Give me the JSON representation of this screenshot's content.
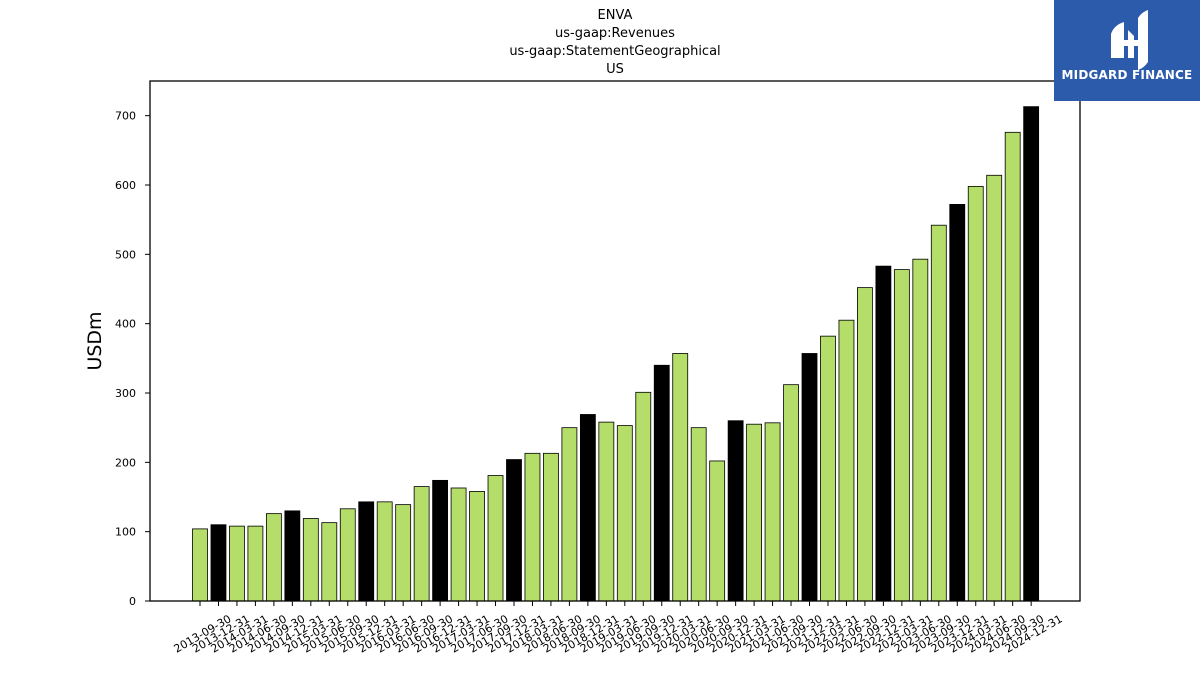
{
  "title_lines": [
    "ENVA",
    "us-gaap:Revenues",
    "us-gaap:StatementGeographical",
    "US"
  ],
  "logo": {
    "text": "MIDGARD FINANCE",
    "background": "#2c5bab"
  },
  "colors": {
    "bar_regular": "#b5dd6a",
    "bar_q4": "#000000",
    "edge": "#000000"
  },
  "chart_data": {
    "type": "bar",
    "title": "ENVA\nus-gaap:Revenues\nus-gaap:StatementGeographical\nUS",
    "xlabel": "",
    "ylabel": "USDm",
    "ylim": [
      0,
      750
    ],
    "yticks": [
      0,
      100,
      200,
      300,
      400,
      500,
      600,
      700
    ],
    "grid": false,
    "categories": [
      "2013-09-30",
      "2013-12-31",
      "2014-03-31",
      "2014-06-30",
      "2014-09-30",
      "2014-12-31",
      "2015-03-31",
      "2015-06-30",
      "2015-09-30",
      "2015-12-31",
      "2016-03-31",
      "2016-06-30",
      "2016-09-30",
      "2016-12-31",
      "2017-03-31",
      "2017-06-30",
      "2017-09-30",
      "2017-12-31",
      "2018-03-31",
      "2018-06-30",
      "2018-09-30",
      "2018-12-31",
      "2019-03-31",
      "2019-06-30",
      "2019-09-30",
      "2019-12-31",
      "2020-03-31",
      "2020-06-30",
      "2020-09-30",
      "2020-12-31",
      "2021-03-31",
      "2021-06-30",
      "2021-09-30",
      "2021-12-31",
      "2022-03-31",
      "2022-06-30",
      "2022-09-30",
      "2022-12-31",
      "2023-03-31",
      "2023-06-30",
      "2023-09-30",
      "2023-12-31",
      "2024-03-31",
      "2024-06-30",
      "2024-09-30",
      "2024-12-31"
    ],
    "values": [
      104,
      110,
      108,
      108,
      126,
      130,
      119,
      113,
      133,
      143,
      143,
      139,
      165,
      174,
      163,
      158,
      181,
      204,
      213,
      213,
      250,
      269,
      258,
      253,
      301,
      340,
      357,
      250,
      202,
      260,
      255,
      257,
      312,
      357,
      382,
      405,
      452,
      483,
      478,
      493,
      542,
      572,
      598,
      614,
      676,
      713
    ],
    "highlight": [
      false,
      true,
      false,
      false,
      false,
      true,
      false,
      false,
      false,
      true,
      false,
      false,
      false,
      true,
      false,
      false,
      false,
      true,
      false,
      false,
      false,
      true,
      false,
      false,
      false,
      true,
      false,
      false,
      false,
      true,
      false,
      false,
      false,
      true,
      false,
      false,
      false,
      true,
      false,
      false,
      false,
      true,
      false,
      false,
      false,
      true
    ]
  }
}
